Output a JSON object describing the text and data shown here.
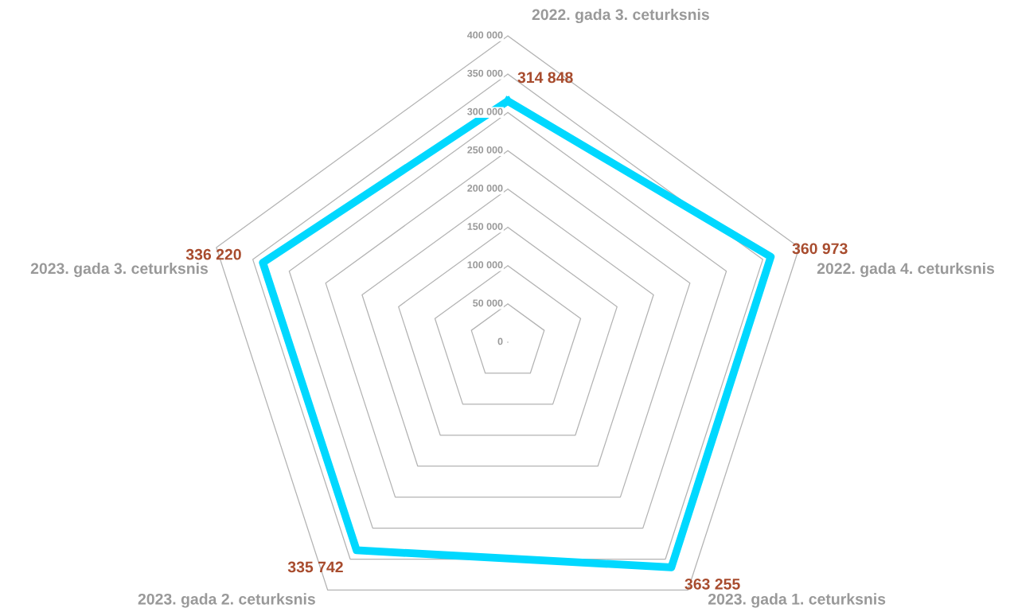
{
  "chart_data": {
    "type": "radar",
    "categories": [
      "2022. gada 3. ceturksnis",
      "2022. gada 4. ceturksnis",
      "2023. gada 1. ceturksnis",
      "2023. gada 2. ceturksnis",
      "2023. gada 3. ceturksnis"
    ],
    "series": [
      {
        "color": "#00d8ff",
        "values": [
          314848,
          360973,
          363255,
          335742,
          336220
        ],
        "value_labels": [
          "314 848",
          "360 973",
          "363 255",
          "335 742",
          "336 220"
        ]
      }
    ],
    "ylim": [
      0,
      400000
    ],
    "yticks": [
      {
        "value": 0,
        "label": "0"
      },
      {
        "value": 50000,
        "label": "50 000"
      },
      {
        "value": 100000,
        "label": "100 000"
      },
      {
        "value": 150000,
        "label": "150 000"
      },
      {
        "value": 200000,
        "label": "200 000"
      },
      {
        "value": 250000,
        "label": "250 000"
      },
      {
        "value": 300000,
        "label": "300 000"
      },
      {
        "value": 350000,
        "label": "350 000"
      },
      {
        "value": 400000,
        "label": "400 000"
      }
    ],
    "grid": true,
    "legend": false
  }
}
